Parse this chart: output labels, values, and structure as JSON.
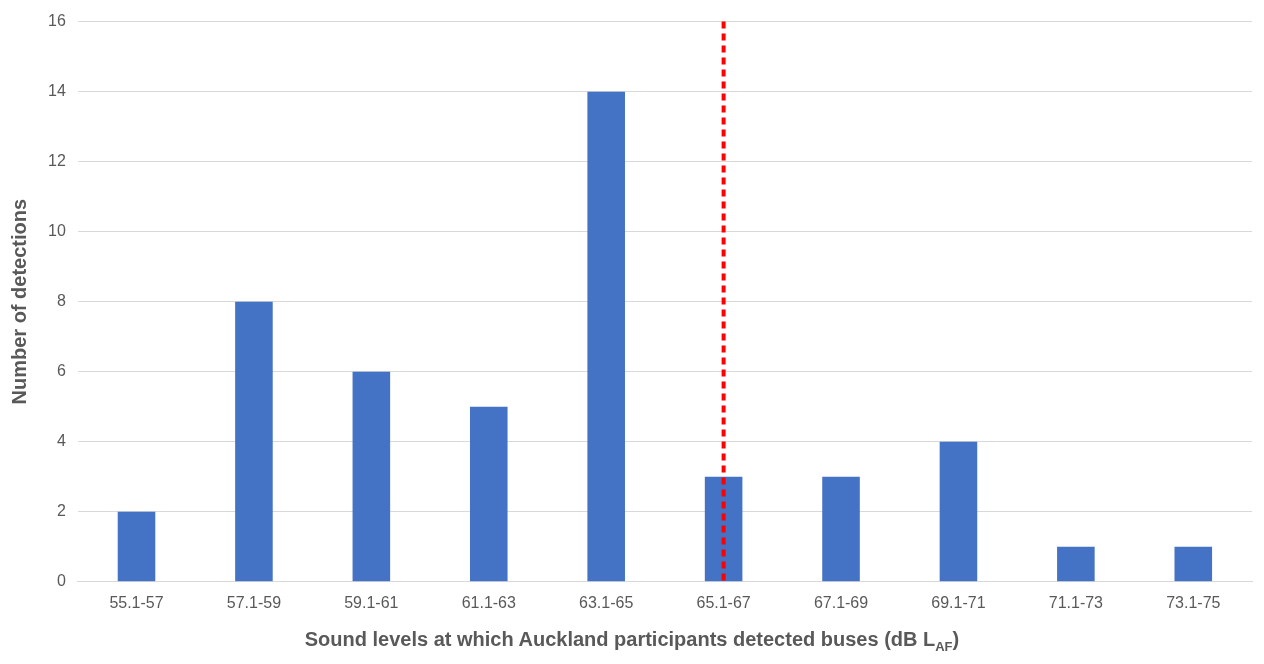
{
  "chart_data": {
    "type": "bar",
    "xlabel": "Sound levels at which Auckland participants detected buses (dB L$_{AF}$)",
    "ylabel": "Number of detections",
    "categories": [
      "55.1-57",
      "57.1-59",
      "59.1-61",
      "61.1-63",
      "63.1-65",
      "65.1-67",
      "67.1-69",
      "69.1-71",
      "71.1-73",
      "73.1-75"
    ],
    "values": [
      2,
      8,
      6,
      5,
      14,
      3,
      3,
      4,
      1,
      1
    ],
    "color": "#4472c4",
    "ylim": [
      0,
      16
    ],
    "yticks": [
      0,
      2,
      4,
      6,
      8,
      10,
      12,
      14,
      16
    ],
    "grid": "y",
    "legend": false,
    "ref_lines": [
      {
        "axis": "x",
        "value": "65.1-67",
        "color": "#ff0000",
        "line_style": "dashed"
      }
    ]
  }
}
